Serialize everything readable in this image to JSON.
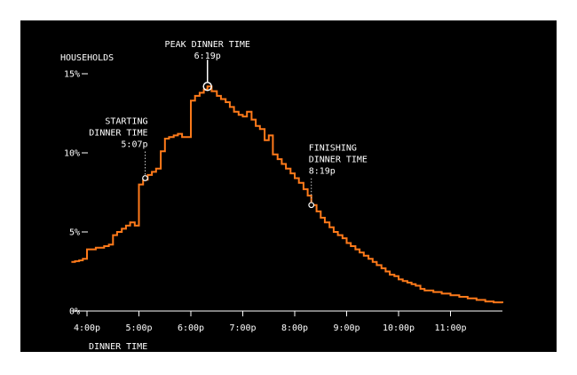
{
  "chart_data": {
    "type": "line",
    "title": "",
    "ylabel": "HOUSEHOLDS",
    "xlabel": "DINNER TIME",
    "x_unit": "hour of day (16 = 4:00p)",
    "xlim": [
      15.7,
      24.0
    ],
    "ylim": [
      0,
      15
    ],
    "y_ticks": [
      {
        "value": 0,
        "label": "0%"
      },
      {
        "value": 5,
        "label": "5%"
      },
      {
        "value": 10,
        "label": "10%"
      },
      {
        "value": 15,
        "label": "15%"
      }
    ],
    "x_ticks": [
      {
        "value": 16,
        "label": "4:00p"
      },
      {
        "value": 17,
        "label": "5:00p"
      },
      {
        "value": 18,
        "label": "6:00p"
      },
      {
        "value": 19,
        "label": "7:00p"
      },
      {
        "value": 20,
        "label": "8:00p"
      },
      {
        "value": 21,
        "label": "9:00p"
      },
      {
        "value": 22,
        "label": "10:00p"
      },
      {
        "value": 23,
        "label": "11:00p"
      }
    ],
    "series": [
      {
        "name": "",
        "color": "#ff7a1a",
        "points": [
          [
            15.7,
            3.1
          ],
          [
            15.77,
            3.15
          ],
          [
            15.85,
            3.2
          ],
          [
            15.92,
            3.3
          ],
          [
            16.0,
            3.9
          ],
          [
            16.08,
            3.9
          ],
          [
            16.17,
            4.0
          ],
          [
            16.25,
            4.0
          ],
          [
            16.33,
            4.1
          ],
          [
            16.42,
            4.2
          ],
          [
            16.5,
            4.8
          ],
          [
            16.58,
            5.0
          ],
          [
            16.67,
            5.2
          ],
          [
            16.75,
            5.4
          ],
          [
            16.83,
            5.6
          ],
          [
            16.92,
            5.4
          ],
          [
            17.0,
            8.0
          ],
          [
            17.08,
            8.3
          ],
          [
            17.17,
            8.6
          ],
          [
            17.25,
            8.8
          ],
          [
            17.33,
            9.0
          ],
          [
            17.42,
            10.1
          ],
          [
            17.5,
            10.9
          ],
          [
            17.58,
            11.0
          ],
          [
            17.67,
            11.1
          ],
          [
            17.75,
            11.2
          ],
          [
            17.83,
            11.0
          ],
          [
            17.92,
            11.0
          ],
          [
            18.0,
            13.3
          ],
          [
            18.08,
            13.6
          ],
          [
            18.17,
            13.8
          ],
          [
            18.25,
            14.0
          ],
          [
            18.32,
            14.2
          ],
          [
            18.4,
            13.9
          ],
          [
            18.5,
            13.6
          ],
          [
            18.58,
            13.4
          ],
          [
            18.67,
            13.2
          ],
          [
            18.75,
            12.9
          ],
          [
            18.83,
            12.6
          ],
          [
            18.92,
            12.4
          ],
          [
            19.0,
            12.3
          ],
          [
            19.08,
            12.6
          ],
          [
            19.17,
            12.1
          ],
          [
            19.25,
            11.7
          ],
          [
            19.33,
            11.5
          ],
          [
            19.42,
            10.8
          ],
          [
            19.5,
            11.1
          ],
          [
            19.58,
            9.9
          ],
          [
            19.67,
            9.6
          ],
          [
            19.75,
            9.3
          ],
          [
            19.83,
            9.0
          ],
          [
            19.92,
            8.7
          ],
          [
            20.0,
            8.4
          ],
          [
            20.08,
            8.1
          ],
          [
            20.17,
            7.7
          ],
          [
            20.25,
            7.3
          ],
          [
            20.32,
            6.7
          ],
          [
            20.42,
            6.3
          ],
          [
            20.5,
            5.9
          ],
          [
            20.58,
            5.6
          ],
          [
            20.67,
            5.3
          ],
          [
            20.75,
            5.0
          ],
          [
            20.83,
            4.8
          ],
          [
            20.92,
            4.6
          ],
          [
            21.0,
            4.3
          ],
          [
            21.08,
            4.1
          ],
          [
            21.17,
            3.9
          ],
          [
            21.25,
            3.7
          ],
          [
            21.33,
            3.5
          ],
          [
            21.42,
            3.3
          ],
          [
            21.5,
            3.1
          ],
          [
            21.58,
            2.9
          ],
          [
            21.67,
            2.7
          ],
          [
            21.75,
            2.5
          ],
          [
            21.83,
            2.3
          ],
          [
            21.92,
            2.2
          ],
          [
            22.0,
            2.0
          ],
          [
            22.08,
            1.9
          ],
          [
            22.17,
            1.8
          ],
          [
            22.25,
            1.7
          ],
          [
            22.33,
            1.6
          ],
          [
            22.42,
            1.4
          ],
          [
            22.5,
            1.3
          ],
          [
            22.67,
            1.2
          ],
          [
            22.83,
            1.1
          ],
          [
            23.0,
            1.0
          ],
          [
            23.17,
            0.9
          ],
          [
            23.33,
            0.8
          ],
          [
            23.5,
            0.7
          ],
          [
            23.67,
            0.6
          ],
          [
            23.83,
            0.55
          ],
          [
            24.0,
            0.5
          ]
        ]
      }
    ],
    "annotations": [
      {
        "name": "peak",
        "x": 18.32,
        "y": 14.2,
        "lines": [
          "PEAK DINNER TIME",
          "6:19p"
        ],
        "placement": "above"
      },
      {
        "name": "starting",
        "x": 17.12,
        "y": 8.4,
        "lines": [
          "STARTING",
          "DINNER TIME",
          "5:07p"
        ],
        "placement": "above-left"
      },
      {
        "name": "finishing",
        "x": 20.32,
        "y": 6.7,
        "lines": [
          "FINISHING",
          "DINNER TIME",
          "8:19p"
        ],
        "placement": "above-right"
      }
    ],
    "colors": {
      "background": "#000000",
      "text": "#ffffff",
      "line": "#ff7a1a"
    },
    "grid": false
  }
}
